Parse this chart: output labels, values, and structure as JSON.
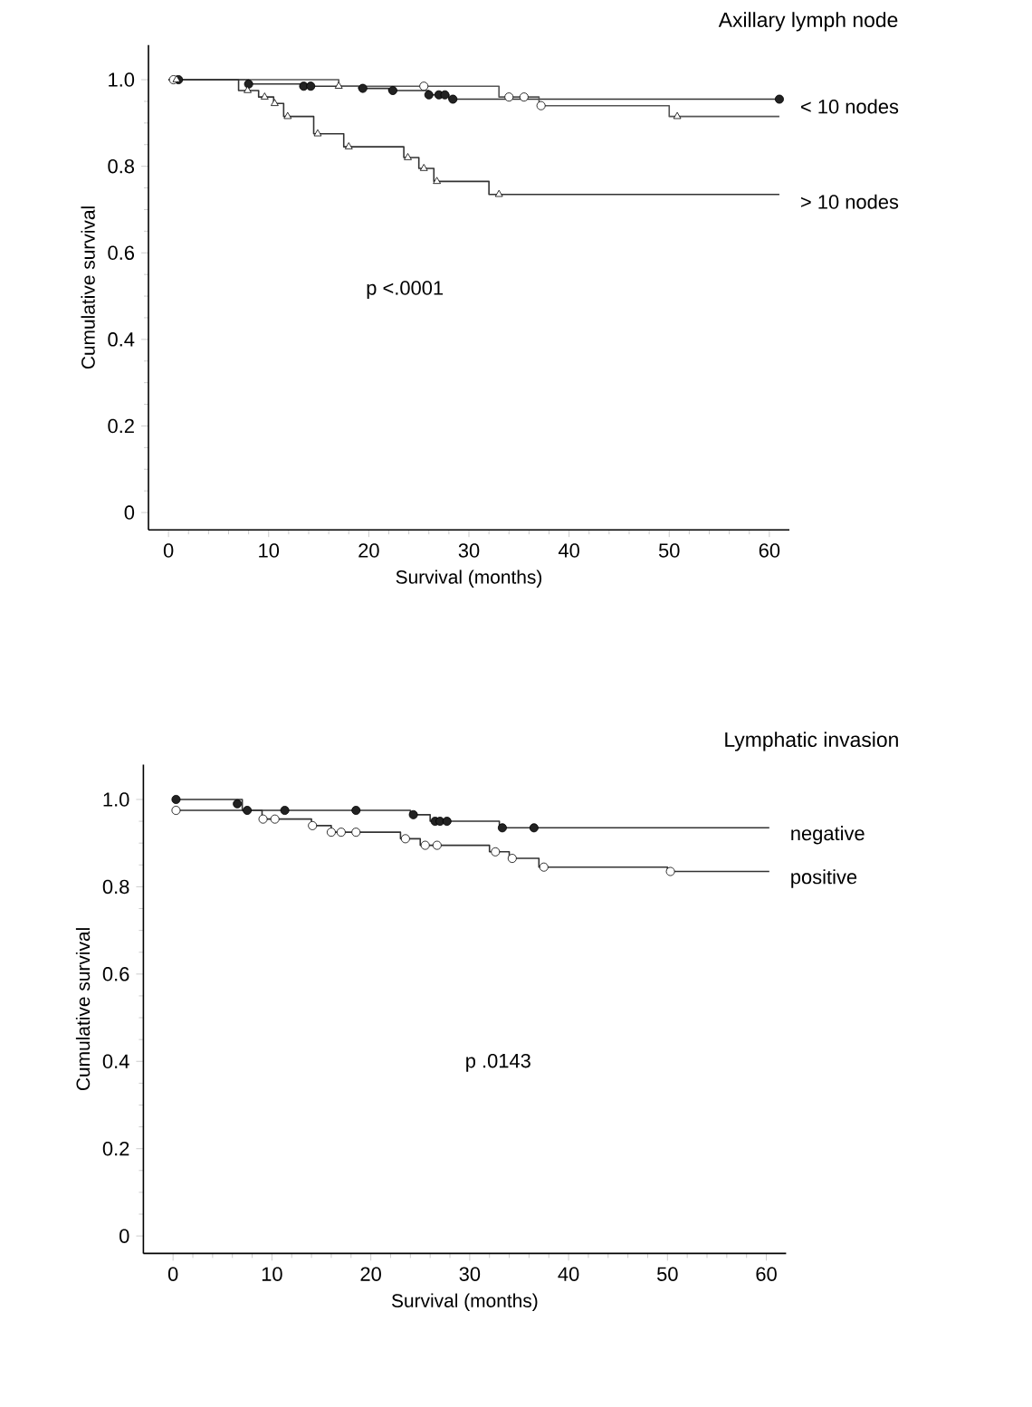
{
  "chart_data": [
    {
      "type": "step",
      "title": "Axillary lymph node",
      "xlabel": "Survival (months)",
      "ylabel": "Cumulative survival",
      "annotations": [
        "p <.0001"
      ],
      "xlim": [
        -2,
        62
      ],
      "ylim": [
        -0.04,
        1.08
      ],
      "xticks": [
        0,
        10,
        20,
        30,
        40,
        50,
        60
      ],
      "yticks": [
        0,
        0.2,
        0.4,
        0.6,
        0.8,
        {
          "value": 1,
          "label": "1.0"
        }
      ],
      "series": [
        {
          "name": "< 10 nodes",
          "marker": "none",
          "color": "#333333",
          "x": [
            0,
            8,
            14,
            19,
            22,
            26,
            28,
            61
          ],
          "values": [
            1.0,
            0.99,
            0.985,
            0.98,
            0.975,
            0.965,
            0.955,
            0.955
          ]
        },
        {
          "marker": "none",
          "color": "#555555",
          "x": [
            0,
            17,
            33,
            37,
            50,
            61
          ],
          "values": [
            1.0,
            0.985,
            0.96,
            0.94,
            0.915,
            0.915
          ]
        },
        {
          "name": "> 10 nodes",
          "marker": "none",
          "color": "#333333",
          "x": [
            0,
            7,
            9,
            10.5,
            11.5,
            14.5,
            17.5,
            23.5,
            25,
            26.5,
            32,
            61
          ],
          "values": [
            1.0,
            0.975,
            0.96,
            0.945,
            0.915,
            0.875,
            0.845,
            0.82,
            0.795,
            0.765,
            0.735,
            0.735
          ]
        },
        {
          "type": "scatter",
          "marker": "circle",
          "color": "#222222",
          "x": [
            1,
            8,
            13.5,
            14.2,
            19.4,
            22.4,
            26,
            27,
            27.6,
            28.4,
            61
          ],
          "values": [
            1.0,
            0.99,
            0.985,
            0.985,
            0.98,
            0.975,
            0.965,
            0.965,
            0.965,
            0.955,
            0.955
          ]
        },
        {
          "type": "scatter",
          "marker": "circle",
          "color": "#ffffff",
          "x": [
            0.5,
            25.5,
            34,
            35.5,
            37.2
          ],
          "values": [
            1.0,
            0.985,
            0.96,
            0.96,
            0.94
          ]
        },
        {
          "type": "scatter",
          "marker": "triangle",
          "color": "#ffffff",
          "x": [
            17,
            50.8
          ],
          "values": [
            0.985,
            0.915
          ]
        },
        {
          "type": "scatter",
          "marker": "triangle",
          "color": "#ffffff",
          "x": [
            0.8,
            7.9,
            9.6,
            10.6,
            11.9,
            14.9,
            18,
            23.9,
            25.5,
            26.8,
            33
          ],
          "values": [
            1.0,
            0.975,
            0.96,
            0.945,
            0.915,
            0.875,
            0.845,
            0.82,
            0.795,
            0.765,
            0.735
          ]
        }
      ]
    },
    {
      "type": "step",
      "title": "Lymphatic invasion",
      "xlabel": "Survival (months)",
      "ylabel": "Cumulative survival",
      "annotations": [
        "p .0143"
      ],
      "xlim": [
        -3,
        62
      ],
      "ylim": [
        -0.04,
        1.08
      ],
      "xticks": [
        0,
        10,
        20,
        30,
        40,
        50,
        60
      ],
      "yticks": [
        0,
        0.2,
        0.4,
        0.6,
        0.8,
        {
          "value": 1,
          "label": "1.0"
        }
      ],
      "series": [
        {
          "name": "negative",
          "marker": "none",
          "color": "#333333",
          "x": [
            0,
            7,
            24,
            26,
            33,
            60.3
          ],
          "values": [
            1.0,
            0.975,
            0.965,
            0.95,
            0.935,
            0.935
          ]
        },
        {
          "name": "positive",
          "marker": "none",
          "color": "#333333",
          "x": [
            0,
            9,
            14,
            16,
            23,
            25,
            32,
            34,
            37,
            50,
            60.3
          ],
          "values": [
            0.975,
            0.955,
            0.94,
            0.925,
            0.91,
            0.895,
            0.88,
            0.865,
            0.845,
            0.835,
            0.835
          ]
        },
        {
          "type": "scatter",
          "marker": "circle",
          "color": "#222222",
          "x": [
            0.3,
            6.5,
            7.5,
            11.3,
            18.5,
            24.3,
            26.5,
            27,
            27.7,
            33.3,
            36.5
          ],
          "values": [
            1.0,
            0.99,
            0.975,
            0.975,
            0.975,
            0.965,
            0.95,
            0.95,
            0.95,
            0.935,
            0.935
          ]
        },
        {
          "type": "scatter",
          "marker": "circle",
          "color": "#ffffff",
          "x": [
            0.3,
            9.1,
            10.3,
            14.1,
            16,
            17,
            18.5,
            23.5,
            25.5,
            26.7,
            32.6,
            34.3,
            37.5,
            50.3
          ],
          "values": [
            0.975,
            0.955,
            0.955,
            0.94,
            0.925,
            0.925,
            0.925,
            0.91,
            0.895,
            0.895,
            0.88,
            0.865,
            0.845,
            0.835
          ]
        }
      ]
    }
  ]
}
